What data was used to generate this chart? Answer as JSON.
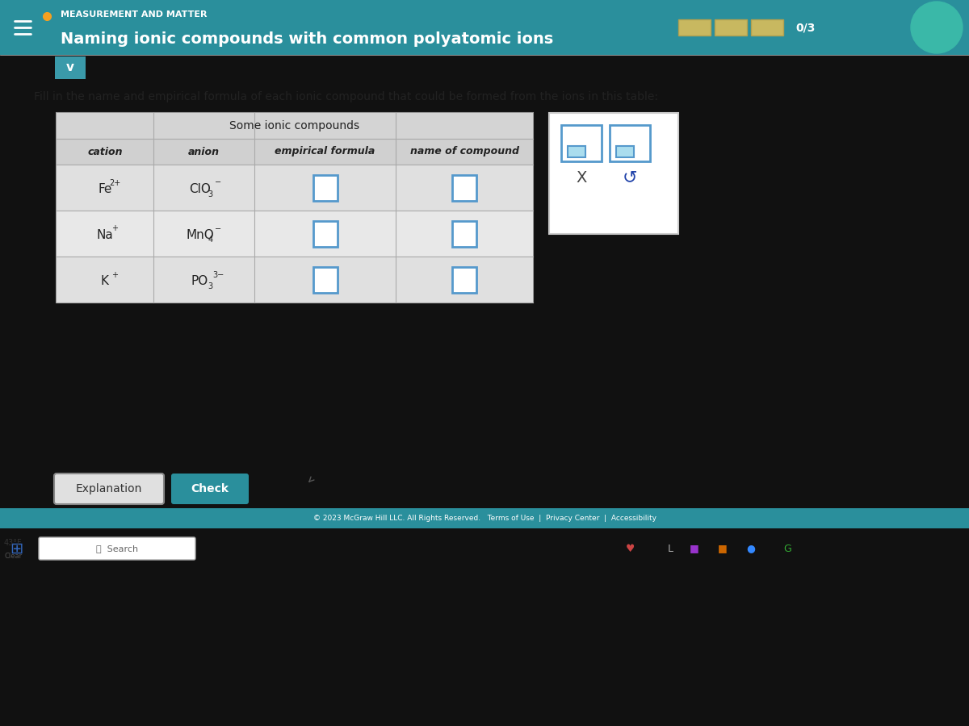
{
  "bg_color": "#111111",
  "screen_bg": "#e8e8e8",
  "header_bg": "#2a8f9c",
  "header_text_color": "#ffffff",
  "title_small": "MEASUREMENT AND MATTER",
  "title_main": "Naming ionic compounds with common polyatomic ions",
  "progress_text": "0/3",
  "instruction": "Fill in the name and empirical formula of each ionic compound that could be formed from the ions in this table:",
  "table_title": "Some ionic compounds",
  "col_headers": [
    "cation",
    "anion",
    "empirical formula",
    "name of compound"
  ],
  "cations_main": [
    "Fe",
    "Na",
    "K"
  ],
  "cations_sup": [
    "2+",
    "+",
    "+"
  ],
  "anions_main": [
    "ClO",
    "MnO",
    "PO"
  ],
  "anions_sub": [
    "3",
    "4",
    "3"
  ],
  "anions_sup": [
    "−",
    "−",
    "3−"
  ],
  "table_border_color": "#999999",
  "table_title_bg": "#d4d4d4",
  "table_header_bg": "#d0d0d0",
  "data_row_bg": [
    "#e0e0e0",
    "#e8e8e8",
    "#e0e0e0"
  ],
  "input_box_border": "#5599cc",
  "footer_bg": "#2a8f9c",
  "footer_text": "© 2023 McGraw Hill LLC. All Rights Reserved.   Terms of Use  |  Privacy Center  |  Accessibility",
  "taskbar_bg": "#b8ccb8",
  "button_explanation_bg": "#e0e0e0",
  "button_check_bg": "#2a8f9c",
  "weather_text_1": "43°F",
  "weather_text_2": "Clear",
  "search_text": "Search",
  "right_panel_bg": "#ffffff",
  "right_panel_border": "#cccccc",
  "x_symbol": "X",
  "undo_symbol": "↺",
  "progress_bar_color": "#c8b860",
  "progress_bar_border": "#b0a050",
  "avatar_color": "#3ab8a8",
  "orange_dot": "#f5a020"
}
